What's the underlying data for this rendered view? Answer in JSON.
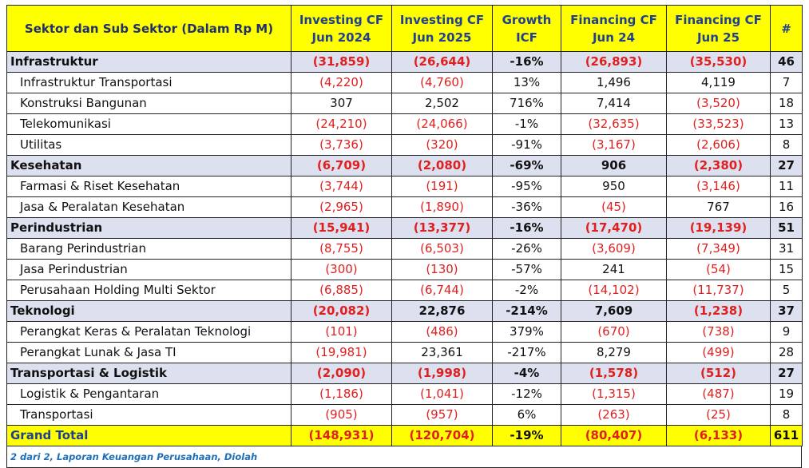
{
  "header": {
    "sector": "Sektor dan Sub Sektor (Dalam Rp M)",
    "icf24_l1": "Investing CF",
    "icf24_l2": "Jun 2024",
    "icf25_l1": "Investing CF",
    "icf25_l2": "Jun 2025",
    "growth_l1": "Growth",
    "growth_l2": "ICF",
    "fcf24_l1": "Financing CF",
    "fcf24_l2": "Jun 24",
    "fcf25_l1": "Financing CF",
    "fcf25_l2": "Jun 25",
    "count": "#"
  },
  "rows": [
    {
      "type": "sector",
      "name": "Infrastruktur",
      "icf24": "(31,859)",
      "icf25": "(26,644)",
      "growth": "-16%",
      "fcf24": "(26,893)",
      "fcf25": "(35,530)",
      "count": "46"
    },
    {
      "type": "sub",
      "name": "Infrastruktur Transportasi",
      "icf24": "(4,220)",
      "icf25": "(4,760)",
      "growth": "13%",
      "fcf24": "1,496",
      "fcf25": "4,119",
      "count": "7"
    },
    {
      "type": "sub",
      "name": "Konstruksi Bangunan",
      "icf24": "307",
      "icf25": "2,502",
      "growth": "716%",
      "fcf24": "7,414",
      "fcf25": "(3,520)",
      "count": "18"
    },
    {
      "type": "sub",
      "name": "Telekomunikasi",
      "icf24": "(24,210)",
      "icf25": "(24,066)",
      "growth": "-1%",
      "fcf24": "(32,635)",
      "fcf25": "(33,523)",
      "count": "13"
    },
    {
      "type": "sub",
      "name": "Utilitas",
      "icf24": "(3,736)",
      "icf25": "(320)",
      "growth": "-91%",
      "fcf24": "(3,167)",
      "fcf25": "(2,606)",
      "count": "8"
    },
    {
      "type": "sector",
      "name": "Kesehatan",
      "icf24": "(6,709)",
      "icf25": "(2,080)",
      "growth": "-69%",
      "fcf24": "906",
      "fcf25": "(2,380)",
      "count": "27"
    },
    {
      "type": "sub",
      "name": "Farmasi & Riset Kesehatan",
      "icf24": "(3,744)",
      "icf25": "(191)",
      "growth": "-95%",
      "fcf24": "950",
      "fcf25": "(3,146)",
      "count": "11"
    },
    {
      "type": "sub",
      "name": "Jasa & Peralatan Kesehatan",
      "icf24": "(2,965)",
      "icf25": "(1,890)",
      "growth": "-36%",
      "fcf24": "(45)",
      "fcf25": "767",
      "count": "16"
    },
    {
      "type": "sector",
      "name": "Perindustrian",
      "icf24": "(15,941)",
      "icf25": "(13,377)",
      "growth": "-16%",
      "fcf24": "(17,470)",
      "fcf25": "(19,139)",
      "count": "51"
    },
    {
      "type": "sub",
      "name": "Barang Perindustrian",
      "icf24": "(8,755)",
      "icf25": "(6,503)",
      "growth": "-26%",
      "fcf24": "(3,609)",
      "fcf25": "(7,349)",
      "count": "31"
    },
    {
      "type": "sub",
      "name": "Jasa Perindustrian",
      "icf24": "(300)",
      "icf25": "(130)",
      "growth": "-57%",
      "fcf24": "241",
      "fcf25": "(54)",
      "count": "15"
    },
    {
      "type": "sub",
      "name": "Perusahaan Holding Multi Sektor",
      "icf24": "(6,885)",
      "icf25": "(6,744)",
      "growth": "-2%",
      "fcf24": "(14,102)",
      "fcf25": "(11,737)",
      "count": "5"
    },
    {
      "type": "sector",
      "name": "Teknologi",
      "icf24": "(20,082)",
      "icf25": "22,876",
      "growth": "-214%",
      "fcf24": "7,609",
      "fcf25": "(1,238)",
      "count": "37"
    },
    {
      "type": "sub",
      "name": "Perangkat Keras & Peralatan Teknologi",
      "icf24": "(101)",
      "icf25": "(486)",
      "growth": "379%",
      "fcf24": "(670)",
      "fcf25": "(738)",
      "count": "9"
    },
    {
      "type": "sub",
      "name": "Perangkat Lunak & Jasa TI",
      "icf24": "(19,981)",
      "icf25": "23,361",
      "growth": "-217%",
      "fcf24": "8,279",
      "fcf25": "(499)",
      "count": "28"
    },
    {
      "type": "sector",
      "name": "Transportasi & Logistik",
      "icf24": "(2,090)",
      "icf25": "(1,998)",
      "growth": "-4%",
      "fcf24": "(1,578)",
      "fcf25": "(512)",
      "count": "27"
    },
    {
      "type": "sub",
      "name": "Logistik & Pengantaran",
      "icf24": "(1,186)",
      "icf25": "(1,041)",
      "growth": "-12%",
      "fcf24": "(1,315)",
      "fcf25": "(487)",
      "count": "19"
    },
    {
      "type": "sub",
      "name": "Transportasi",
      "icf24": "(905)",
      "icf25": "(957)",
      "growth": "6%",
      "fcf24": "(263)",
      "fcf25": "(25)",
      "count": "8"
    }
  ],
  "total": {
    "name": "Grand Total",
    "icf24": "(148,931)",
    "icf25": "(120,704)",
    "growth": "-19%",
    "fcf24": "(80,407)",
    "fcf25": "(6,133)",
    "count": "611"
  },
  "source": "2 dari 2, Laporan Keuangan Perusahaan, Diolah",
  "colors": {
    "header_bg": "#ffff00",
    "header_text": "#1f3f8f",
    "sector_bg": "#dde1ef",
    "negative": "#e0201f",
    "source_text": "#1f6fb8"
  }
}
